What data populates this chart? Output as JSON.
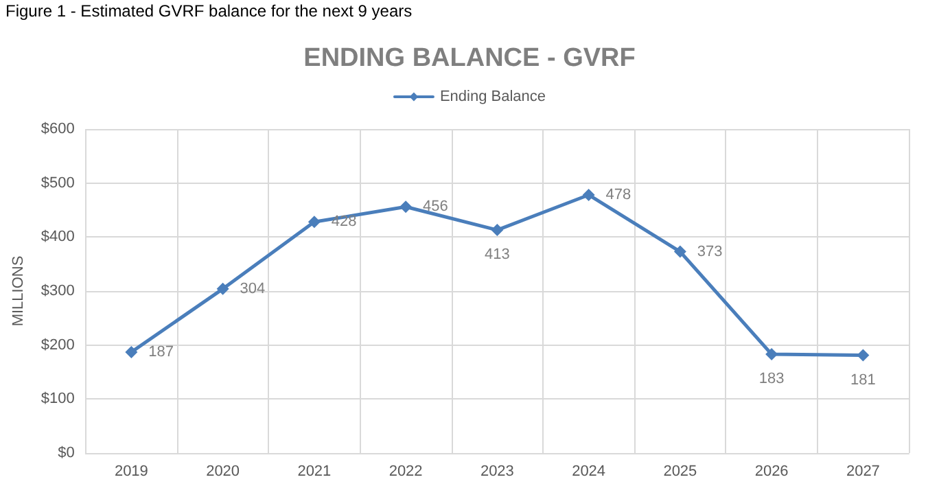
{
  "chart_data": {
    "type": "line",
    "title": "ENDING BALANCE - GVRF",
    "ylabel": "MILLIONS",
    "annotations": [
      "Figure 1 - Estimated GVRF balance for the next 9 years"
    ],
    "categories": [
      "2019",
      "2020",
      "2021",
      "2022",
      "2023",
      "2024",
      "2025",
      "2026",
      "2027"
    ],
    "series": [
      {
        "name": "Ending Balance",
        "color": "#4a7ebb",
        "values": [
          187,
          304,
          428,
          456,
          413,
          478,
          373,
          183,
          181
        ]
      }
    ],
    "ylim": [
      0,
      600
    ],
    "yticks": [
      {
        "value": 0,
        "label": "$0"
      },
      {
        "value": 100,
        "label": "$100"
      },
      {
        "value": 200,
        "label": "$200"
      },
      {
        "value": 300,
        "label": "$300"
      },
      {
        "value": 400,
        "label": "$400"
      },
      {
        "value": 500,
        "label": "$500"
      },
      {
        "value": 600,
        "label": "$600"
      }
    ],
    "grid": true,
    "legend": "top",
    "marker": "diamond",
    "line_style": "solid",
    "data_labels": true
  }
}
